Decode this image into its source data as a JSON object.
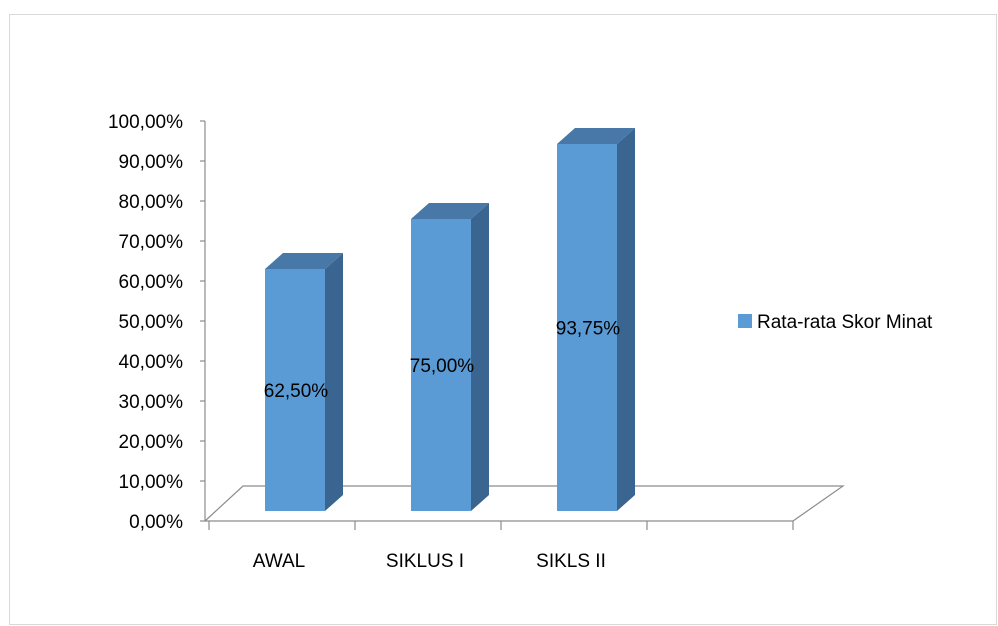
{
  "chart_data": {
    "type": "bar",
    "style": "3d-column",
    "categories": [
      "AWAL",
      "SIKLUS I",
      "SIKLS II"
    ],
    "series": [
      {
        "name": "Rata-rata Skor Minat",
        "values": [
          62.5,
          75.0,
          93.75
        ],
        "data_labels": [
          "62,50%",
          "75,00%",
          "93,75%"
        ]
      }
    ],
    "y_ticks": [
      "0,00%",
      "10,00%",
      "20,00%",
      "30,00%",
      "40,00%",
      "50,00%",
      "60,00%",
      "70,00%",
      "80,00%",
      "90,00%",
      "100,00%"
    ],
    "ylim": [
      0,
      100
    ],
    "grid": false,
    "legend_position": "right",
    "colors": {
      "front": "#5b9bd5",
      "side": "#3a6590",
      "top": "#4778a8",
      "floor_line": "#8c8c8c"
    }
  }
}
